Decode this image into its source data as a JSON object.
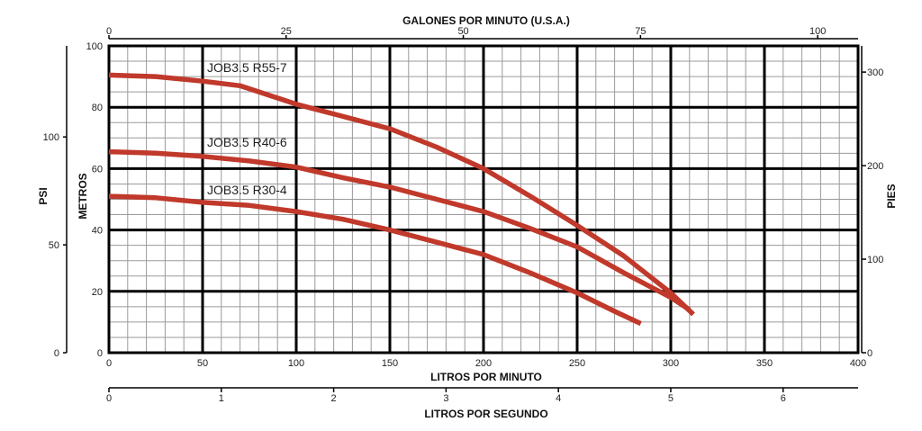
{
  "chart_data": {
    "type": "line",
    "x_axis": {
      "label": "LITROS POR MINUTO",
      "range": [
        0,
        400
      ],
      "ticks": [
        "0",
        "50",
        "100",
        "150",
        "200",
        "250",
        "300",
        "350",
        "400"
      ]
    },
    "x_axis_top": {
      "label": "GALONES POR MINUTO (U.S.A.)",
      "range": [
        0,
        105.7
      ],
      "tick_values": [
        0,
        25,
        50,
        75,
        100
      ],
      "ticks": [
        "0",
        "25",
        "50",
        "75",
        "100"
      ]
    },
    "x_axis_bottom2": {
      "label": "LITROS POR SEGUNDO",
      "range": [
        0,
        6.667
      ],
      "tick_values": [
        0,
        1,
        2,
        3,
        4,
        5,
        6
      ],
      "ticks": [
        "0",
        "1",
        "2",
        "3",
        "4",
        "5",
        "6"
      ]
    },
    "y_axis": {
      "label": "METROS",
      "range": [
        0,
        100
      ],
      "tick_values": [
        0,
        20,
        40,
        60,
        80,
        100
      ],
      "ticks": [
        "0",
        "20",
        "40",
        "60",
        "80",
        "100"
      ]
    },
    "y_axis_psi": {
      "label": "PSI",
      "range": [
        0,
        142.2
      ],
      "tick_values": [
        0,
        50,
        100
      ],
      "ticks": [
        "0",
        "50",
        "100"
      ]
    },
    "y_axis_pies": {
      "label": "PIES",
      "range": [
        0,
        328
      ],
      "tick_values": [
        0,
        100,
        200,
        300
      ],
      "ticks": [
        "0",
        "100",
        "200",
        "300"
      ]
    },
    "grid": true,
    "series": [
      {
        "name": "JOB3.5 R55-7",
        "color": "#c0392b",
        "x": [
          0,
          25,
          50,
          70,
          100,
          125,
          150,
          175,
          200,
          225,
          250,
          275,
          300,
          312
        ],
        "y": [
          90.5,
          90.0,
          88.5,
          87.0,
          81.0,
          77.0,
          73.0,
          67.0,
          60.0,
          51.0,
          41.5,
          31.5,
          19.5,
          12.5
        ]
      },
      {
        "name": "JOB3.5 R40-6",
        "color": "#c0392b",
        "x": [
          0,
          25,
          50,
          75,
          100,
          125,
          150,
          175,
          200,
          225,
          250,
          275,
          300,
          310
        ],
        "y": [
          65.5,
          65.0,
          64.0,
          62.5,
          60.5,
          57.0,
          54.0,
          50.0,
          46.0,
          40.5,
          34.5,
          26.0,
          18.0,
          14.0
        ]
      },
      {
        "name": "JOB3.5 R30-4",
        "color": "#c0392b",
        "x": [
          0,
          25,
          50,
          75,
          100,
          125,
          150,
          175,
          200,
          225,
          250,
          270,
          284
        ],
        "y": [
          51.0,
          50.5,
          49.0,
          48.0,
          46.0,
          43.5,
          40.0,
          36.0,
          32.0,
          26.0,
          19.5,
          13.5,
          9.5
        ]
      }
    ]
  }
}
